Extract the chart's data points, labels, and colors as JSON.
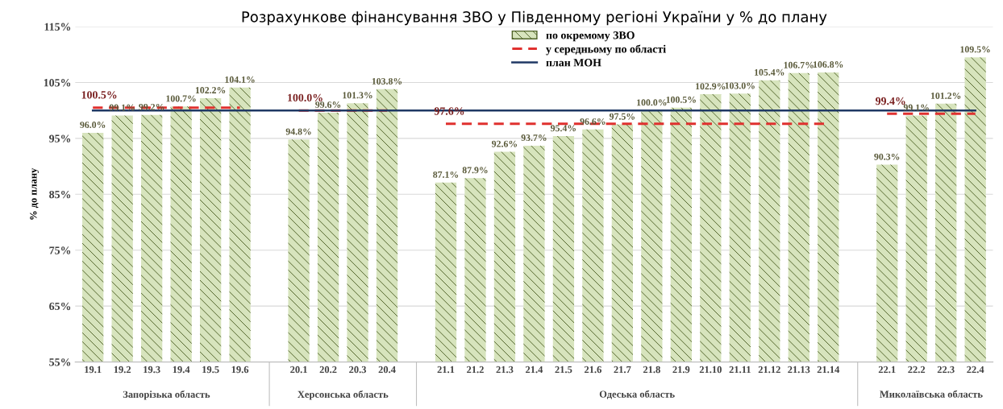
{
  "chart_data": {
    "type": "bar",
    "title": "Розрахункове фінансування ЗВО у Південному регіоні України у % до плану",
    "ylabel": "% до плану",
    "categories": [
      "19.1",
      "19.2",
      "19.3",
      "19.4",
      "19.5",
      "19.6",
      null,
      "20.1",
      "20.2",
      "20.3",
      "20.4",
      null,
      "21.1",
      "21.2",
      "21.3",
      "21.4",
      "21.5",
      "21.6",
      "21.7",
      "21.8",
      "21.9",
      "21.10",
      "21.11",
      "21.12",
      "21.13",
      "21.14",
      null,
      "22.1",
      "22.2",
      "22.3",
      "22.4"
    ],
    "series": [
      {
        "name": "по окремому ЗВО",
        "type": "bar",
        "color": "#d7e4bd",
        "values": [
          96.0,
          99.1,
          99.2,
          100.7,
          102.2,
          104.1,
          null,
          94.8,
          99.6,
          101.3,
          103.8,
          null,
          87.1,
          87.9,
          92.6,
          93.7,
          95.4,
          96.6,
          97.5,
          100.0,
          100.5,
          102.9,
          103.0,
          105.4,
          106.7,
          106.8,
          null,
          90.3,
          99.1,
          101.2,
          109.5
        ],
        "value_labels": [
          "96.0%",
          "99.1%",
          "99.2%",
          "100.7%",
          "102.2%",
          "104.1%",
          null,
          "94.8%",
          "99.6%",
          "101.3%",
          "103.8%",
          null,
          "87.1%",
          "87.9%",
          "92.6%",
          "93.7%",
          "95.4%",
          "96.6%",
          "97.5%",
          "100.0%",
          "100.5%",
          "102.9%",
          "103.0%",
          "105.4%",
          "106.7%",
          "106.8%",
          null,
          "90.3%",
          "99.1%",
          "101.2%",
          "109.5%"
        ]
      },
      {
        "name": "у середньому по області",
        "type": "line",
        "line_style": "dashed",
        "color": "#e0312f",
        "values": [
          100.5,
          100.5,
          100.5,
          100.5,
          100.5,
          100.5,
          null,
          100.0,
          100.0,
          100.0,
          100.0,
          null,
          97.6,
          97.6,
          97.6,
          97.6,
          97.6,
          97.6,
          97.6,
          97.6,
          97.6,
          97.6,
          97.6,
          97.6,
          97.6,
          97.6,
          null,
          99.4,
          99.4,
          99.4,
          99.4
        ],
        "value_labels": [
          "100.5%",
          null,
          null,
          null,
          null,
          null,
          null,
          "100.0%",
          null,
          null,
          null,
          null,
          "97.6%",
          null,
          null,
          null,
          null,
          null,
          null,
          null,
          null,
          null,
          null,
          null,
          null,
          null,
          null,
          "99.4%",
          null,
          null,
          null
        ]
      },
      {
        "name": "план МОН",
        "type": "line",
        "line_style": "solid",
        "color": "#1f3864",
        "values": [
          100,
          100,
          100,
          100,
          100,
          100,
          100,
          100,
          100,
          100,
          100,
          100,
          100,
          100,
          100,
          100,
          100,
          100,
          100,
          100,
          100,
          100,
          100,
          100,
          100,
          100,
          100,
          100,
          100,
          100,
          100
        ]
      }
    ],
    "ylim": [
      55,
      115
    ],
    "yticks": [
      {
        "value": 55,
        "label": "55%"
      },
      {
        "value": 65,
        "label": "65%"
      },
      {
        "value": 75,
        "label": "75%"
      },
      {
        "value": 85,
        "label": "85%"
      },
      {
        "value": 95,
        "label": "95%"
      },
      {
        "value": 105,
        "label": "105%"
      },
      {
        "value": 115,
        "label": "115%"
      }
    ],
    "grid": "y",
    "legend": "top",
    "annotations": [
      "Запорізька область",
      "Херсонська область",
      "Одеська область",
      "Миколаївська область"
    ]
  }
}
